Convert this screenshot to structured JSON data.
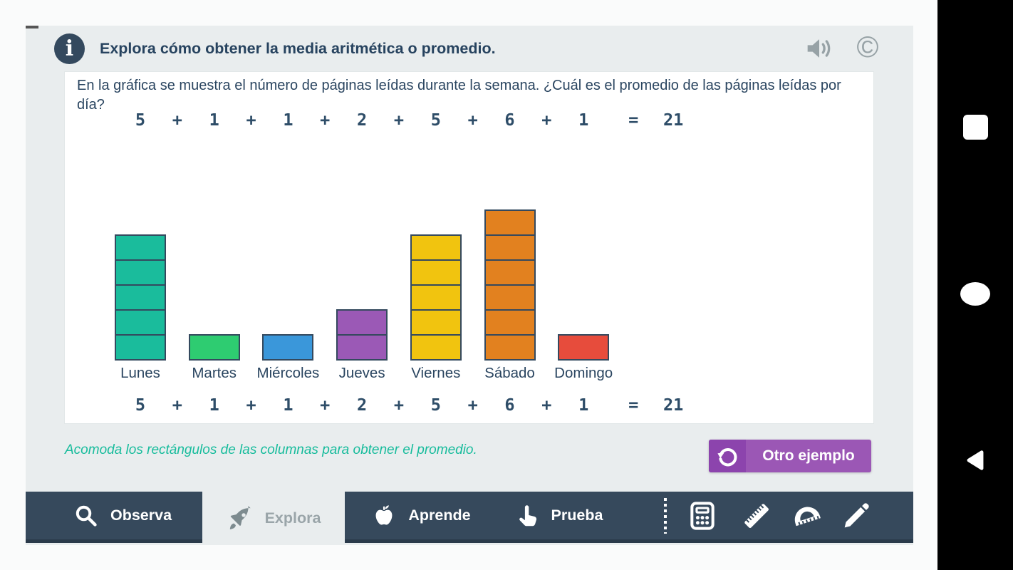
{
  "app": {
    "header": {
      "title": "Explora cómo obtener la media aritmética o promedio.",
      "info_glyph": "i",
      "copyright_glyph": "©"
    },
    "question": "En la gráfica se muestra el número de páginas leídas durante la semana. ¿Cuál es el promedio de las páginas leídas por día?",
    "equation": {
      "numbers": [
        "5",
        "1",
        "1",
        "2",
        "5",
        "6",
        "1"
      ],
      "plus": "+",
      "equals": "=",
      "total": "21"
    },
    "chart_data": {
      "type": "bar",
      "categories": [
        "Lunes",
        "Martes",
        "Miércoles",
        "Jueves",
        "Viernes",
        "Sábado",
        "Domingo"
      ],
      "values": [
        5,
        1,
        1,
        2,
        5,
        6,
        1
      ],
      "unit_stacked": true,
      "bar_colors": [
        "#1abc9c",
        "#2ecc71",
        "#3a97da",
        "#9b59b6",
        "#f1c40f",
        "#e2811f",
        "#e74c3c"
      ],
      "cell_border_color": "#34495e",
      "title": "",
      "xlabel": "",
      "ylabel": "",
      "annotation_top": "5 + 1 + 1 + 2 + 5 + 6 + 1 = 21",
      "annotation_bottom": "5 + 1 + 1 + 2 + 5 + 6 + 1 = 21",
      "total_shown": 21,
      "legend": "none",
      "grid": false
    },
    "instruction": "Acomoda los rectángulos de las columnas para obtener el promedio.",
    "another_example_button": {
      "label": "Otro ejemplo"
    },
    "nav": {
      "tabs": [
        {
          "id": "observa",
          "label": "Observa",
          "icon": "magnifier-icon",
          "active": false
        },
        {
          "id": "explora",
          "label": "Explora",
          "icon": "rocket-icon",
          "active": true
        },
        {
          "id": "aprende",
          "label": "Aprende",
          "icon": "apple-icon",
          "active": false
        },
        {
          "id": "prueba",
          "label": "Prueba",
          "icon": "hand-icon",
          "active": false
        }
      ],
      "tools": [
        {
          "id": "calculator",
          "icon": "calculator-icon"
        },
        {
          "id": "ruler",
          "icon": "ruler-icon"
        },
        {
          "id": "protractor",
          "icon": "protractor-icon"
        },
        {
          "id": "pencil",
          "icon": "pencil-icon"
        }
      ]
    },
    "android_nav": {
      "buttons": [
        {
          "id": "recents",
          "shape": "square"
        },
        {
          "id": "home",
          "shape": "circle"
        },
        {
          "id": "back",
          "shape": "triangle"
        }
      ]
    },
    "colors": {
      "card_bg": "#e9edee",
      "nav_bg": "#36495c",
      "accent_green": "#17bc9c",
      "button_purple": "#9b57b5",
      "button_purple_dark": "#8c44ad",
      "text_dark": "#2a4560",
      "icon_gray": "#97a2a6"
    }
  }
}
